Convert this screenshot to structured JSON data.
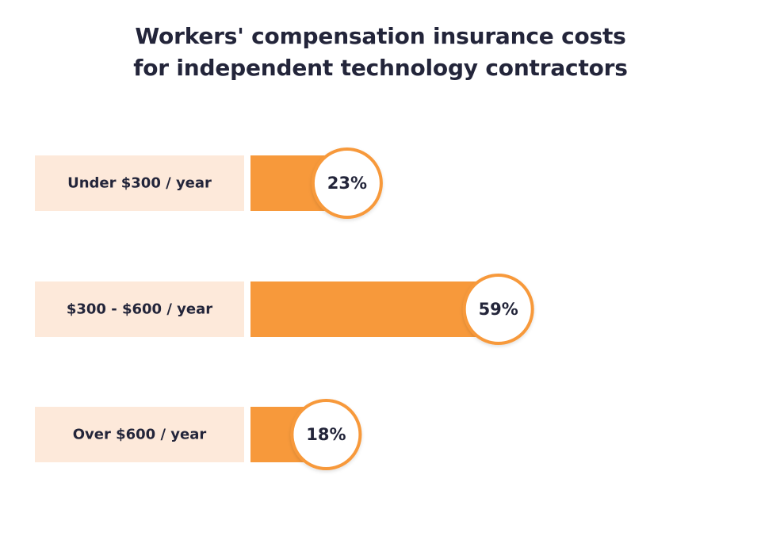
{
  "chart_data": {
    "type": "bar",
    "orientation": "horizontal",
    "title_lines": [
      "Workers' compensation insurance costs",
      "for independent technology contractors"
    ],
    "categories": [
      "Under $300 / year",
      "$300 - $600 / year",
      "Over $600 / year"
    ],
    "values": [
      23,
      59,
      18
    ],
    "value_labels": [
      "23%",
      "59%",
      "18%"
    ],
    "unit": "%",
    "xlim": [
      0,
      100
    ],
    "grid": false,
    "legend": "none",
    "colors": {
      "bar": "#f7993b",
      "label_background": "#fde9da",
      "badge_border": "#f7993b",
      "badge_fill": "#ffffff",
      "text": "#23253a"
    }
  }
}
